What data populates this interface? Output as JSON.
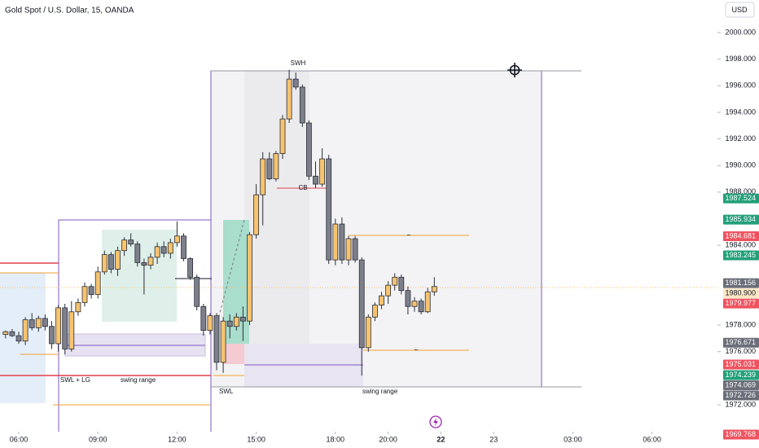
{
  "chart_data": {
    "type": "candlestick",
    "title": "Gold Spot / U.S. Dollar, 15, OANDA",
    "currency": "USD",
    "x": [
      5.5,
      5.75,
      6,
      6.25,
      6.5,
      6.75,
      7,
      7.25,
      7.5,
      7.75,
      8,
      8.25,
      8.5,
      8.75,
      9,
      9.25,
      9.5,
      9.75,
      10,
      10.25,
      10.5,
      10.75,
      11,
      11.25,
      11.5,
      11.75,
      12,
      12.25,
      12.5,
      12.75,
      13,
      13.25,
      13.5,
      13.75,
      14,
      14.25,
      14.5,
      14.75,
      15,
      15.25,
      15.5,
      15.75,
      16,
      16.25,
      16.5,
      16.75,
      17,
      17.25,
      17.5,
      17.75,
      18,
      18.25,
      18.5,
      18.75,
      19,
      19.25,
      19.5,
      19.75,
      20,
      20.25,
      20.5,
      20.75,
      21,
      21.25,
      21.5,
      21.75
    ],
    "open": [
      1977.3,
      1977.5,
      1977.2,
      1976.8,
      1978.4,
      1977.8,
      1978.5,
      1977.9,
      1976.6,
      1979.3,
      1976.2,
      1979.0,
      1979.7,
      1980.9,
      1980.3,
      1982.0,
      1983.3,
      1982.2,
      1983.6,
      1984.4,
      1984.1,
      1982.7,
      1982.5,
      1983.1,
      1983.9,
      1983.4,
      1984.2,
      1984.7,
      1983.0,
      1981.6,
      1979.4,
      1977.6,
      1978.7,
      1975.2,
      1978.3,
      1977.9,
      1978.6,
      1978.3,
      1984.8,
      1987.8,
      1990.5,
      1989.0,
      1990.9,
      1993.5,
      1996.5,
      1995.9,
      1993.2,
      1989.2,
      1988.6,
      1990.5,
      1982.9,
      1985.6,
      1982.9,
      1984.5,
      1982.9,
      1976.3,
      1978.6,
      1979.5,
      1980.2,
      1981.0,
      1981.6,
      1980.6,
      1979.4,
      1979.8,
      1979.0,
      1980.5
    ],
    "high": [
      1977.6,
      1977.7,
      1977.5,
      1978.6,
      1978.9,
      1978.7,
      1978.8,
      1978.3,
      1979.5,
      1979.6,
      1979.8,
      1980.0,
      1981.2,
      1981.1,
      1982.4,
      1983.6,
      1983.5,
      1983.9,
      1984.6,
      1984.9,
      1984.3,
      1983.0,
      1983.4,
      1984.2,
      1984.3,
      1984.5,
      1985.8,
      1984.9,
      1983.1,
      1981.8,
      1979.6,
      1978.9,
      1978.9,
      1978.6,
      1978.8,
      1978.9,
      1979.4,
      1985.0,
      1988.6,
      1991.0,
      1991.0,
      1991.1,
      1993.8,
      1997.2,
      1997.0,
      1996.1,
      1993.4,
      1990.3,
      1991.3,
      1990.8,
      1986.0,
      1986.1,
      1984.7,
      1984.7,
      1983.1,
      1978.8,
      1979.7,
      1980.5,
      1981.3,
      1981.9,
      1981.8,
      1980.9,
      1980.1,
      1980.0,
      1980.8,
      1981.6
    ],
    "low": [
      1977.0,
      1977.1,
      1976.6,
      1976.5,
      1977.6,
      1977.5,
      1977.6,
      1976.2,
      1976.0,
      1975.8,
      1976.0,
      1978.7,
      1979.4,
      1980.0,
      1980.0,
      1981.8,
      1981.9,
      1981.7,
      1983.2,
      1983.9,
      1982.4,
      1980.3,
      1982.2,
      1982.6,
      1983.1,
      1983.0,
      1983.9,
      1982.8,
      1981.4,
      1979.1,
      1977.2,
      1977.3,
      1974.6,
      1974.4,
      1977.0,
      1977.6,
      1976.8,
      1978.0,
      1984.5,
      1985.5,
      1988.9,
      1988.8,
      1990.5,
      1993.2,
      1995.7,
      1992.9,
      1988.9,
      1988.3,
      1988.4,
      1982.6,
      1982.5,
      1982.6,
      1982.5,
      1982.7,
      1974.2,
      1976.0,
      1978.3,
      1979.2,
      1979.6,
      1980.6,
      1980.3,
      1978.8,
      1979.0,
      1978.8,
      1978.9,
      1980.2
    ],
    "close": [
      1977.5,
      1977.2,
      1976.8,
      1978.4,
      1977.8,
      1978.5,
      1977.9,
      1976.6,
      1979.3,
      1976.2,
      1979.0,
      1979.7,
      1980.9,
      1980.3,
      1982.0,
      1983.3,
      1982.2,
      1983.6,
      1984.4,
      1984.1,
      1982.7,
      1982.5,
      1983.1,
      1983.9,
      1983.4,
      1984.2,
      1984.7,
      1983.0,
      1981.6,
      1979.4,
      1977.6,
      1978.7,
      1975.2,
      1978.3,
      1977.9,
      1978.6,
      1978.3,
      1984.8,
      1987.8,
      1990.5,
      1989.0,
      1990.9,
      1993.5,
      1996.5,
      1995.9,
      1993.2,
      1989.2,
      1988.6,
      1990.5,
      1982.9,
      1985.6,
      1982.9,
      1984.5,
      1982.9,
      1976.3,
      1978.6,
      1979.5,
      1980.2,
      1981.0,
      1981.6,
      1980.6,
      1979.4,
      1979.8,
      1979.0,
      1980.5,
      1980.9
    ],
    "colors": {
      "up": "#f6c36f",
      "down": "#7d808b"
    },
    "xlim": [
      5.29,
      32.45
    ],
    "xticks": [
      {
        "value": 6,
        "label": "06:00"
      },
      {
        "value": 9,
        "label": "09:00"
      },
      {
        "value": 12,
        "label": "12:00"
      },
      {
        "value": 15,
        "label": "15:00"
      },
      {
        "value": 18,
        "label": "18:00"
      },
      {
        "value": 20,
        "label": "20:00"
      },
      22,
      {
        "value": 24,
        "label": "23"
      },
      {
        "value": 27,
        "label": "03:00"
      },
      {
        "value": 30,
        "label": "06:00"
      }
    ],
    "ylim": [
      1969.98,
      2002.45
    ],
    "yticks": [
      {
        "value": 2000,
        "label": "2000.000"
      },
      {
        "value": 1998,
        "label": "1998.000"
      },
      {
        "value": 1996,
        "label": "1996.000"
      },
      {
        "value": 1994,
        "label": "1994.000"
      },
      {
        "value": 1992,
        "label": "1992.000"
      },
      {
        "value": 1990,
        "label": "1990.000"
      },
      {
        "value": 1988,
        "label": "1988.000"
      },
      {
        "value": 1984,
        "label": "1984.000"
      },
      {
        "value": 1978,
        "label": "1978.000"
      },
      {
        "value": 1976,
        "label": "1976.000"
      },
      {
        "value": 1972,
        "label": "1972.000"
      }
    ],
    "price_labels": [
      {
        "value": 1987.524,
        "label": "1987.524",
        "color": "#22a07a"
      },
      {
        "value": 1985.934,
        "label": "1985.934",
        "color": "#22a07a"
      },
      {
        "value": 1984.681,
        "label": "1984.681",
        "color": "#ef5360"
      },
      {
        "value": 1983.245,
        "label": "1983.245",
        "color": "#22a07a"
      },
      {
        "value": 1981.156,
        "label": "1981.156",
        "color": "#6b6e79"
      },
      {
        "value": 1980.9,
        "label": "1980.900",
        "color": "#fbe7c4"
      },
      {
        "value": 1979.977,
        "label": "1979.977",
        "color": "#ef5360"
      },
      {
        "value": 1976.671,
        "label": "1976.671",
        "color": "#6b6e79"
      },
      {
        "value": 1975.031,
        "label": "1975.031",
        "color": "#ef5360"
      },
      {
        "value": 1974.239,
        "label": "1974.239",
        "color": "#22a07a"
      },
      {
        "value": 1974.069,
        "label": "1974.069",
        "color": "#6b6e79"
      },
      {
        "value": 1972.726,
        "label": "1972.726",
        "color": "#6b6e79"
      },
      {
        "value": 1969.768,
        "label": "1969.768",
        "color": "#ef5360"
      }
    ],
    "annotations": [
      "SWH",
      "CB",
      "SWL + LG",
      "swing range",
      "SWL",
      "swing range",
      "~",
      "~"
    ]
  }
}
